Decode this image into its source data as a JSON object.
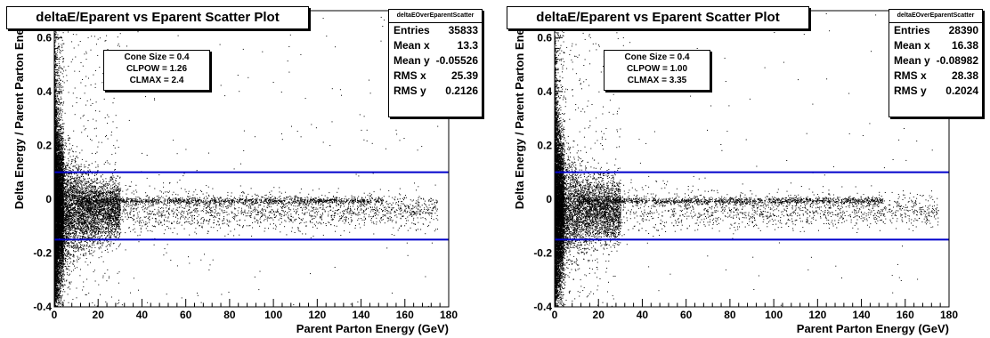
{
  "chart_data": [
    {
      "type": "scatter",
      "title": "deltaE/Eparent vs Eparent Scatter Plot",
      "xlabel": "Parent Parton Energy (GeV)",
      "ylabel": "Delta Energy / Parent Parton Energy",
      "xlim": [
        0,
        180
      ],
      "ylim": [
        -0.4,
        0.7
      ],
      "x_ticks": [
        "0",
        "20",
        "40",
        "60",
        "80",
        "100",
        "120",
        "140",
        "160",
        "180"
      ],
      "y_ticks": [
        "-0.4",
        "-0.2",
        "0",
        "0.2",
        "0.4",
        "0.6"
      ],
      "parameters": [
        "Cone Size = 0.4",
        "CLPOW = 1.26",
        "CLMAX = 2.4"
      ],
      "stats": {
        "name": "deltaEOverEparentScatter",
        "rows": [
          {
            "label": "Entries",
            "value": "35833"
          },
          {
            "label": "Mean x",
            "value": "13.3"
          },
          {
            "label": "Mean y",
            "value": "-0.05526"
          },
          {
            "label": "RMS x",
            "value": "25.39"
          },
          {
            "label": "RMS y",
            "value": "0.2126"
          }
        ]
      },
      "horizontal_lines": [
        0.1,
        -0.15
      ],
      "line_color": "#0000cc",
      "marker_color": "#000000"
    },
    {
      "type": "scatter",
      "title": "deltaE/Eparent vs Eparent Scatter Plot",
      "xlabel": "Parent Parton Energy (GeV)",
      "ylabel": "Delta Energy / Parent Parton Energy",
      "xlim": [
        0,
        180
      ],
      "ylim": [
        -0.4,
        0.7
      ],
      "x_ticks": [
        "0",
        "20",
        "40",
        "60",
        "80",
        "100",
        "120",
        "140",
        "160",
        "180"
      ],
      "y_ticks": [
        "-0.4",
        "-0.2",
        "0",
        "0.2",
        "0.4",
        "0.6"
      ],
      "parameters": [
        "Cone Size = 0.4",
        "CLPOW = 1.00",
        "CLMAX = 3.35"
      ],
      "stats": {
        "name": "deltaEOverEparentScatter",
        "rows": [
          {
            "label": "Entries",
            "value": "28390"
          },
          {
            "label": "Mean x",
            "value": "16.38"
          },
          {
            "label": "Mean y",
            "value": "-0.08982"
          },
          {
            "label": "RMS x",
            "value": "28.38"
          },
          {
            "label": "RMS y",
            "value": "0.2024"
          }
        ]
      },
      "horizontal_lines": [
        0.1,
        -0.15
      ],
      "line_color": "#0000cc",
      "marker_color": "#000000"
    }
  ]
}
